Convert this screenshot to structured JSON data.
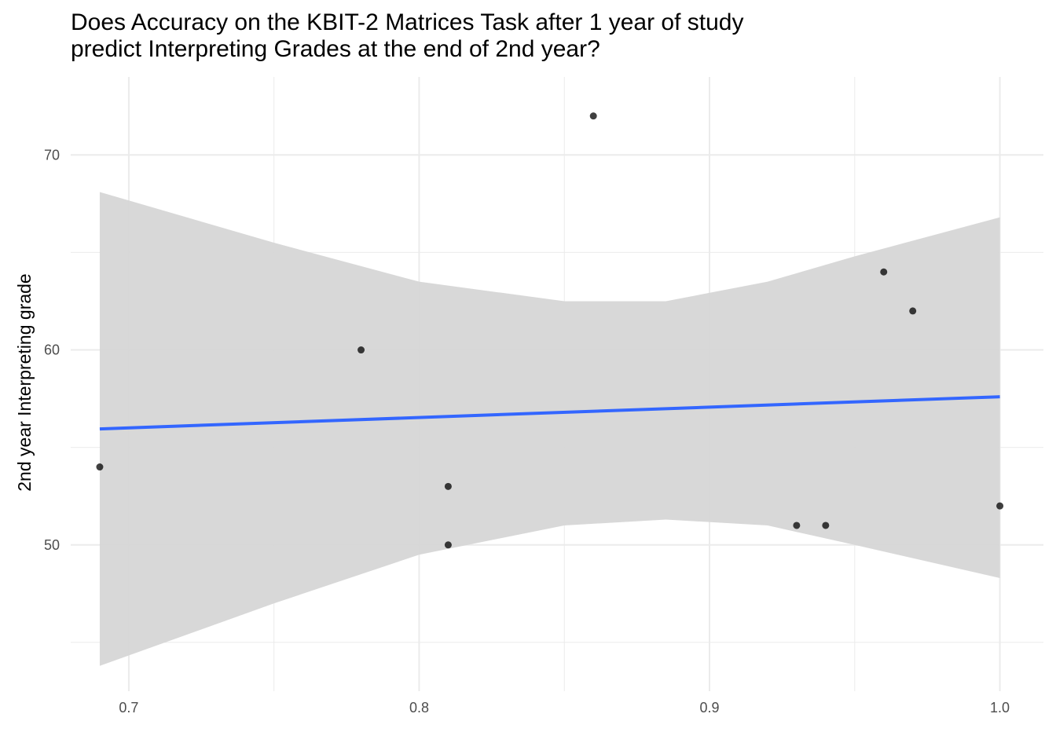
{
  "chart_data": {
    "type": "scatter",
    "title_lines": [
      "Does Accuracy on the KBIT-2 Matrices Task after 1 year of study",
      "predict Interpreting Grades at the end of 2nd year?"
    ],
    "xlabel": "",
    "ylabel": "2nd year Interpreting grade",
    "xlim": [
      0.68,
      1.015
    ],
    "ylim": [
      42.5,
      74
    ],
    "x_ticks": [
      0.7,
      0.8,
      0.9,
      1.0
    ],
    "x_tick_labels": [
      "0.7",
      "0.8",
      "0.9",
      "1.0"
    ],
    "y_ticks": [
      50,
      60,
      70
    ],
    "y_tick_labels": [
      "50",
      "60",
      "70"
    ],
    "grid": true,
    "points": [
      {
        "x": 0.69,
        "y": 54
      },
      {
        "x": 0.78,
        "y": 60
      },
      {
        "x": 0.81,
        "y": 53
      },
      {
        "x": 0.81,
        "y": 50
      },
      {
        "x": 0.86,
        "y": 72
      },
      {
        "x": 0.93,
        "y": 51
      },
      {
        "x": 0.94,
        "y": 51
      },
      {
        "x": 0.96,
        "y": 64
      },
      {
        "x": 0.97,
        "y": 62
      },
      {
        "x": 1.0,
        "y": 52
      }
    ],
    "regression_line": {
      "x": [
        0.69,
        1.0
      ],
      "y": [
        55.95,
        57.6
      ]
    },
    "confidence_band": {
      "x": [
        0.69,
        0.75,
        0.8,
        0.85,
        0.885,
        0.92,
        0.95,
        1.0
      ],
      "upper": [
        68.1,
        65.5,
        63.5,
        62.5,
        62.5,
        63.5,
        64.8,
        66.8
      ],
      "lower": [
        43.8,
        47.0,
        49.5,
        51.0,
        51.3,
        51.0,
        50.0,
        48.3
      ]
    },
    "colors": {
      "points": "#000000",
      "line": "#3366ff",
      "band": "#d6d6d6",
      "grid": "#ebebeb"
    }
  }
}
